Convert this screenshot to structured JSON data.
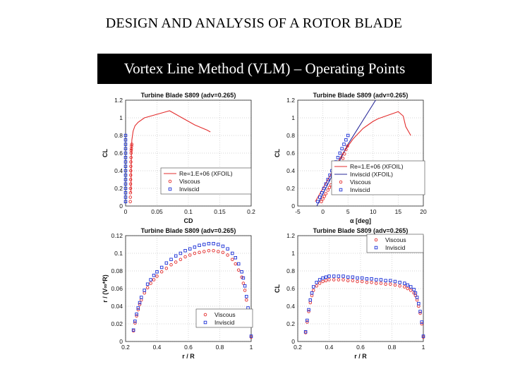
{
  "slide_title": "DESIGN AND ANALYSIS OF A ROTOR BLADE",
  "banner_title": "Vortex Line Method (VLM) – Operating Points",
  "colors": {
    "red": "#e32d2d",
    "blue": "#1a2fd6",
    "blue_line": "#2a2a9a",
    "grid": "#c8c8c8"
  },
  "chart_data": [
    {
      "type": "line",
      "title": "Turbine Blade S809 (adv=0.265)",
      "xlabel": "CD",
      "ylabel": "CL",
      "xticks": [
        "0",
        "0.05",
        "0.1",
        "0.15",
        "0.2"
      ],
      "xtick_values": [
        0,
        0.05,
        0.1,
        0.15,
        0.2
      ],
      "yticks": [
        "0",
        "0.2",
        "0.4",
        "0.6",
        "0.8",
        "1",
        "1.2"
      ],
      "ytick_values": [
        0,
        0.2,
        0.4,
        0.6,
        0.8,
        1,
        1.2
      ],
      "xlim": [
        0,
        0.2
      ],
      "ylim": [
        0,
        1.2
      ],
      "grid": true,
      "legend_position": "bottom-right",
      "series": [
        {
          "name": "Re=1.E+06 (XFOIL)",
          "style": "line",
          "color": "#e32d2d",
          "x": [
            0.0085,
            0.0088,
            0.009,
            0.0092,
            0.0095,
            0.01,
            0.012,
            0.015,
            0.02,
            0.03,
            0.04,
            0.05,
            0.06,
            0.07,
            0.08,
            0.09,
            0.1,
            0.11,
            0.12,
            0.13,
            0.135
          ],
          "y": [
            0.15,
            0.3,
            0.45,
            0.55,
            0.65,
            0.75,
            0.85,
            0.91,
            0.95,
            1.0,
            1.02,
            1.04,
            1.06,
            1.08,
            1.04,
            1.0,
            0.96,
            0.92,
            0.89,
            0.86,
            0.84
          ]
        },
        {
          "name": "Viscous",
          "style": "circle",
          "color": "#e32d2d",
          "x": [
            0.0075,
            0.0076,
            0.0078,
            0.0078,
            0.0079,
            0.008,
            0.0081,
            0.0082,
            0.0083,
            0.0084,
            0.0086,
            0.0088,
            0.009,
            0.0092,
            0.0095,
            0.0098
          ],
          "y": [
            0.05,
            0.1,
            0.15,
            0.2,
            0.25,
            0.3,
            0.35,
            0.4,
            0.45,
            0.5,
            0.55,
            0.6,
            0.63,
            0.65,
            0.68,
            0.7
          ]
        },
        {
          "name": "Inviscid",
          "style": "square",
          "color": "#1a2fd6",
          "x": [
            0.0,
            0.0,
            0.0,
            0.0,
            0.0,
            0.0,
            0.0,
            0.0,
            0.0,
            0.0,
            0.0,
            0.0,
            0.0,
            0.0,
            0.0,
            0.0
          ],
          "y": [
            0.05,
            0.1,
            0.15,
            0.2,
            0.25,
            0.3,
            0.35,
            0.4,
            0.45,
            0.5,
            0.55,
            0.6,
            0.65,
            0.7,
            0.75,
            0.8
          ]
        }
      ]
    },
    {
      "type": "line",
      "title": "Turbine Blade S809 (adv=0.265)",
      "xlabel": "α [deg]",
      "ylabel": "CL",
      "xticks": [
        "-5",
        "0",
        "5",
        "10",
        "15",
        "20"
      ],
      "xtick_values": [
        -5,
        0,
        5,
        10,
        15,
        20
      ],
      "yticks": [
        "0",
        "0.2",
        "0.4",
        "0.6",
        "0.8",
        "1",
        "1.2"
      ],
      "ytick_values": [
        0,
        0.2,
        0.4,
        0.6,
        0.8,
        1,
        1.2
      ],
      "xlim": [
        -5,
        20
      ],
      "ylim": [
        0,
        1.2
      ],
      "grid": true,
      "legend_position": "bottom-right",
      "series": [
        {
          "name": "Re=1.E+06 (XFOIL)",
          "style": "line",
          "color": "#e32d2d",
          "x": [
            -1.5,
            0,
            2,
            4,
            5,
            6,
            7,
            8,
            9,
            10,
            11,
            12,
            13,
            14,
            15,
            16,
            16.5,
            17.5
          ],
          "y": [
            0.05,
            0.2,
            0.4,
            0.6,
            0.68,
            0.76,
            0.82,
            0.88,
            0.92,
            0.96,
            0.99,
            1.01,
            1.03,
            1.05,
            1.07,
            1.02,
            0.9,
            0.8
          ]
        },
        {
          "name": "Inviscid (XFOIL)",
          "style": "line",
          "color": "#2a2a9a",
          "x": [
            -1.2,
            5,
            10.5
          ],
          "y": [
            0.0,
            0.7,
            1.2
          ]
        },
        {
          "name": "Viscous",
          "style": "circle",
          "color": "#e32d2d",
          "x": [
            -0.3,
            0.0,
            0.3,
            0.6,
            1.0,
            1.3,
            1.6,
            2.0,
            2.3,
            2.7,
            3.0,
            3.4,
            3.7,
            4.0,
            4.3,
            4.6,
            4.9
          ],
          "y": [
            0.05,
            0.08,
            0.11,
            0.14,
            0.18,
            0.21,
            0.24,
            0.28,
            0.32,
            0.36,
            0.4,
            0.44,
            0.49,
            0.54,
            0.59,
            0.64,
            0.68
          ]
        },
        {
          "name": "Inviscid",
          "style": "square",
          "color": "#1a2fd6",
          "x": [
            -1.0,
            -0.6,
            -0.2,
            0.2,
            0.6,
            1.0,
            1.4,
            1.8,
            2.2,
            2.6,
            3.0,
            3.4,
            3.8,
            4.2,
            4.6,
            5.0
          ],
          "y": [
            0.05,
            0.1,
            0.15,
            0.2,
            0.25,
            0.3,
            0.35,
            0.4,
            0.45,
            0.5,
            0.55,
            0.6,
            0.65,
            0.7,
            0.75,
            0.8
          ]
        }
      ]
    },
    {
      "type": "scatter",
      "title": "Turbine Blade S809 (adv=0.265)",
      "xlabel": "r / R",
      "ylabel": "r / (V∞*R)",
      "xticks": [
        "0.2",
        "0.4",
        "0.6",
        "0.8",
        "1"
      ],
      "xtick_values": [
        0.2,
        0.4,
        0.6,
        0.8,
        1
      ],
      "yticks": [
        "0",
        "0.02",
        "0.04",
        "0.06",
        "0.08",
        "0.1",
        "0.12"
      ],
      "ytick_values": [
        0,
        0.02,
        0.04,
        0.06,
        0.08,
        0.1,
        0.12
      ],
      "xlim": [
        0.2,
        1
      ],
      "ylim": [
        0,
        0.12
      ],
      "grid": true,
      "legend_position": "bottom-right",
      "series": [
        {
          "name": "Viscous",
          "style": "circle",
          "color": "#e32d2d",
          "x": [
            0.25,
            0.26,
            0.27,
            0.28,
            0.29,
            0.3,
            0.32,
            0.34,
            0.36,
            0.38,
            0.4,
            0.43,
            0.46,
            0.49,
            0.52,
            0.55,
            0.58,
            0.61,
            0.64,
            0.67,
            0.7,
            0.73,
            0.76,
            0.79,
            0.82,
            0.85,
            0.88,
            0.9,
            0.92,
            0.94,
            0.95,
            0.96,
            0.97,
            0.98,
            0.99,
            1.0
          ],
          "y": [
            0.012,
            0.021,
            0.029,
            0.036,
            0.042,
            0.047,
            0.055,
            0.061,
            0.066,
            0.07,
            0.074,
            0.079,
            0.083,
            0.087,
            0.09,
            0.093,
            0.096,
            0.098,
            0.1,
            0.101,
            0.102,
            0.103,
            0.103,
            0.102,
            0.101,
            0.098,
            0.093,
            0.088,
            0.081,
            0.073,
            0.066,
            0.058,
            0.047,
            0.035,
            0.02,
            0.005
          ]
        },
        {
          "name": "Inviscid",
          "style": "square",
          "color": "#1a2fd6",
          "x": [
            0.25,
            0.26,
            0.27,
            0.28,
            0.29,
            0.3,
            0.32,
            0.34,
            0.36,
            0.38,
            0.4,
            0.43,
            0.46,
            0.49,
            0.52,
            0.55,
            0.58,
            0.61,
            0.64,
            0.67,
            0.7,
            0.73,
            0.76,
            0.79,
            0.82,
            0.85,
            0.88,
            0.9,
            0.92,
            0.94,
            0.95,
            0.96,
            0.97,
            0.98,
            0.99,
            1.0
          ],
          "y": [
            0.013,
            0.023,
            0.031,
            0.038,
            0.044,
            0.05,
            0.058,
            0.065,
            0.07,
            0.075,
            0.079,
            0.084,
            0.089,
            0.093,
            0.097,
            0.1,
            0.103,
            0.105,
            0.107,
            0.109,
            0.11,
            0.111,
            0.111,
            0.11,
            0.108,
            0.105,
            0.1,
            0.095,
            0.088,
            0.079,
            0.072,
            0.063,
            0.051,
            0.038,
            0.022,
            0.006
          ]
        }
      ]
    },
    {
      "type": "scatter",
      "title": "Turbine Blade S809 (adv=0.265)",
      "xlabel": "r / R",
      "ylabel": "CL",
      "xticks": [
        "0.2",
        "0.4",
        "0.6",
        "0.8",
        "1"
      ],
      "xtick_values": [
        0.2,
        0.4,
        0.6,
        0.8,
        1
      ],
      "yticks": [
        "0",
        "0.2",
        "0.4",
        "0.6",
        "0.8",
        "1",
        "1.2"
      ],
      "ytick_values": [
        0,
        0.2,
        0.4,
        0.6,
        0.8,
        1,
        1.2
      ],
      "xlim": [
        0.2,
        1
      ],
      "ylim": [
        0,
        1.2
      ],
      "grid": true,
      "legend_position": "top-right",
      "series": [
        {
          "name": "Viscous",
          "style": "circle",
          "color": "#e32d2d",
          "x": [
            0.25,
            0.26,
            0.27,
            0.28,
            0.29,
            0.3,
            0.32,
            0.34,
            0.36,
            0.38,
            0.4,
            0.43,
            0.46,
            0.49,
            0.52,
            0.55,
            0.58,
            0.61,
            0.64,
            0.67,
            0.7,
            0.73,
            0.76,
            0.79,
            0.82,
            0.85,
            0.88,
            0.9,
            0.92,
            0.94,
            0.95,
            0.96,
            0.97,
            0.98,
            0.99,
            1.0
          ],
          "y": [
            0.1,
            0.22,
            0.34,
            0.44,
            0.52,
            0.58,
            0.63,
            0.66,
            0.68,
            0.69,
            0.7,
            0.7,
            0.7,
            0.7,
            0.69,
            0.69,
            0.68,
            0.68,
            0.67,
            0.67,
            0.66,
            0.66,
            0.65,
            0.65,
            0.64,
            0.63,
            0.62,
            0.6,
            0.58,
            0.55,
            0.52,
            0.47,
            0.4,
            0.32,
            0.2,
            0.05
          ]
        },
        {
          "name": "Inviscid",
          "style": "square",
          "color": "#1a2fd6",
          "x": [
            0.25,
            0.26,
            0.27,
            0.28,
            0.29,
            0.3,
            0.32,
            0.34,
            0.36,
            0.38,
            0.4,
            0.43,
            0.46,
            0.49,
            0.52,
            0.55,
            0.58,
            0.61,
            0.64,
            0.67,
            0.7,
            0.73,
            0.76,
            0.79,
            0.82,
            0.85,
            0.88,
            0.9,
            0.92,
            0.94,
            0.95,
            0.96,
            0.97,
            0.98,
            0.99,
            1.0
          ],
          "y": [
            0.11,
            0.24,
            0.36,
            0.47,
            0.55,
            0.62,
            0.67,
            0.7,
            0.72,
            0.73,
            0.74,
            0.74,
            0.74,
            0.74,
            0.73,
            0.73,
            0.72,
            0.72,
            0.71,
            0.71,
            0.7,
            0.7,
            0.69,
            0.69,
            0.68,
            0.67,
            0.66,
            0.64,
            0.62,
            0.59,
            0.55,
            0.5,
            0.43,
            0.34,
            0.22,
            0.06
          ]
        }
      ]
    }
  ]
}
